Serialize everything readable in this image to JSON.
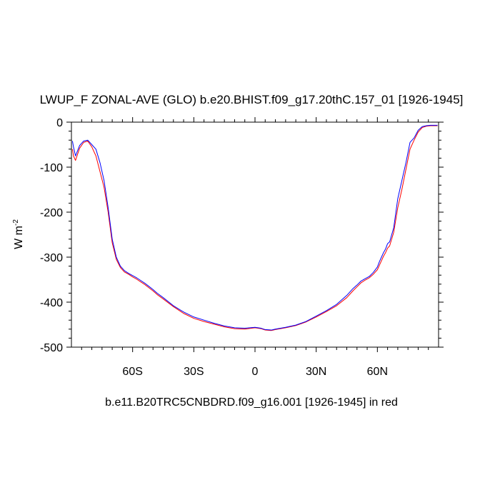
{
  "chart_data": {
    "type": "line",
    "title": "LWUP_F ZONAL-AVE (GLO) b.e20.BHIST.f09_g17.20thC.157_01 [1926-1945]",
    "caption": "b.e11.B20TRC5CNBDRD.f09_g16.001 [1926-1945] in red",
    "ylabel": {
      "base": "W m",
      "sup": "-2"
    },
    "xlim": [
      -90,
      90
    ],
    "ylim": [
      -500,
      0
    ],
    "x_ticks": [
      {
        "value": -60,
        "label": "60S"
      },
      {
        "value": -30,
        "label": "30S"
      },
      {
        "value": 0,
        "label": "0"
      },
      {
        "value": 30,
        "label": "30N"
      },
      {
        "value": 60,
        "label": "60N"
      }
    ],
    "y_ticks": [
      {
        "value": 0,
        "label": "0"
      },
      {
        "value": -100,
        "label": "-100"
      },
      {
        "value": -200,
        "label": "-200"
      },
      {
        "value": -300,
        "label": "-300"
      },
      {
        "value": -400,
        "label": "-400"
      },
      {
        "value": -500,
        "label": "-500"
      }
    ],
    "grid": false,
    "series": [
      {
        "color": "#0000ff",
        "x": [
          -89.5,
          -89,
          -88,
          -86,
          -84,
          -82,
          -80,
          -78,
          -76,
          -74,
          -72,
          -70,
          -68,
          -66,
          -64,
          -62,
          -60,
          -58,
          -56,
          -54,
          -52,
          -50,
          -48,
          -45,
          -40,
          -35,
          -30,
          -25,
          -20,
          -15,
          -10,
          -5,
          0,
          3,
          5,
          8,
          10,
          15,
          20,
          25,
          30,
          35,
          40,
          45,
          48,
          50,
          52,
          54,
          56,
          58,
          60,
          61,
          62,
          63,
          64,
          65,
          66,
          68,
          70,
          72,
          74,
          76,
          78,
          80,
          82,
          84,
          86,
          88,
          89.5
        ],
        "y": [
          -42,
          -55,
          -75,
          -52,
          -42,
          -40,
          -50,
          -60,
          -90,
          -130,
          -190,
          -260,
          -300,
          -320,
          -330,
          -336,
          -341,
          -346,
          -352,
          -358,
          -365,
          -372,
          -380,
          -390,
          -408,
          -422,
          -433,
          -440,
          -447,
          -453,
          -457,
          -458,
          -456,
          -458,
          -461,
          -462,
          -460,
          -456,
          -451,
          -443,
          -431,
          -419,
          -405,
          -385,
          -370,
          -362,
          -353,
          -348,
          -343,
          -334,
          -322,
          -310,
          -300,
          -290,
          -282,
          -270,
          -266,
          -235,
          -170,
          -130,
          -90,
          -45,
          -35,
          -18,
          -10,
          -8,
          -7,
          -7,
          -7
        ]
      },
      {
        "color": "#ff0000",
        "x": [
          -89.5,
          -89,
          -88,
          -86,
          -84,
          -82,
          -80,
          -78,
          -76,
          -74,
          -72,
          -70,
          -68,
          -66,
          -64,
          -62,
          -60,
          -58,
          -56,
          -54,
          -52,
          -50,
          -48,
          -45,
          -40,
          -35,
          -30,
          -25,
          -20,
          -15,
          -10,
          -5,
          0,
          3,
          5,
          8,
          10,
          15,
          20,
          25,
          30,
          35,
          40,
          45,
          48,
          50,
          52,
          54,
          56,
          58,
          60,
          61,
          62,
          63,
          64,
          65,
          66,
          68,
          70,
          72,
          74,
          76,
          78,
          80,
          82,
          84,
          86,
          88,
          89.5
        ],
        "y": [
          -60,
          -75,
          -85,
          -58,
          -45,
          -42,
          -55,
          -75,
          -110,
          -145,
          -200,
          -268,
          -305,
          -323,
          -333,
          -338,
          -344,
          -349,
          -355,
          -361,
          -368,
          -375,
          -383,
          -393,
          -410,
          -425,
          -436,
          -443,
          -449,
          -455,
          -459,
          -460,
          -457,
          -459,
          -462,
          -463,
          -461,
          -457,
          -452,
          -444,
          -433,
          -421,
          -408,
          -390,
          -375,
          -366,
          -357,
          -351,
          -346,
          -338,
          -328,
          -318,
          -308,
          -298,
          -290,
          -280,
          -275,
          -245,
          -190,
          -150,
          -105,
          -60,
          -40,
          -22,
          -12,
          -9,
          -8,
          -8,
          -8
        ]
      }
    ]
  }
}
